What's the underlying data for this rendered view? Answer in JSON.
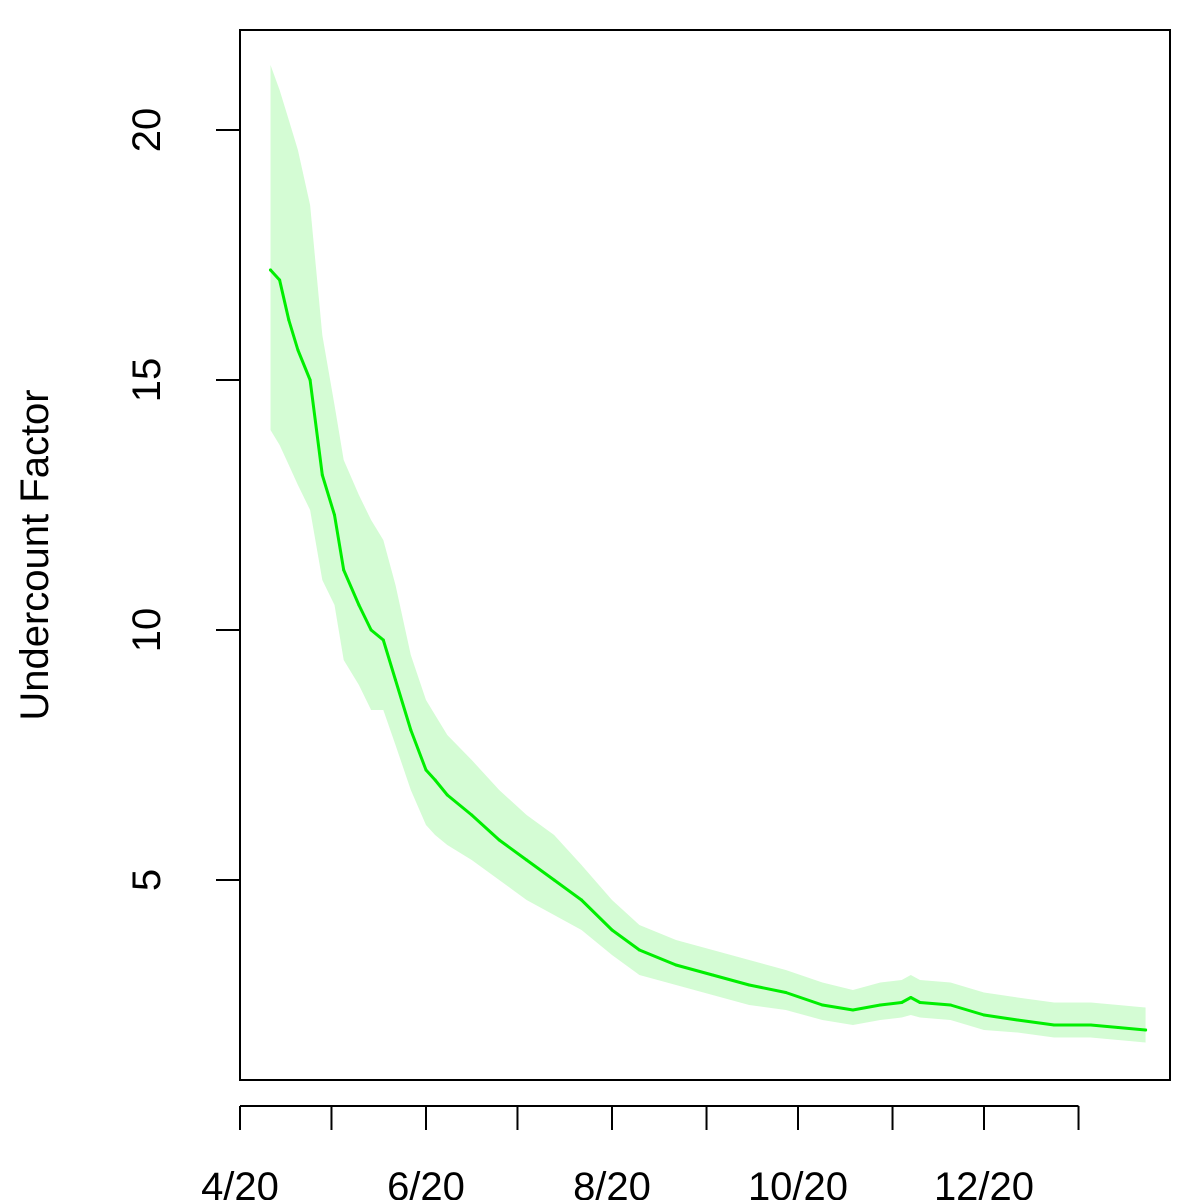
{
  "chart_data": {
    "type": "line",
    "title": "",
    "xlabel": "",
    "ylabel": "Undercount Factor",
    "x_axis": {
      "type": "date",
      "range": [
        "2020-04-01",
        "2021-01-31"
      ],
      "ticks": [
        "2020-04-01",
        "2020-05-01",
        "2020-06-01",
        "2020-07-01",
        "2020-08-01",
        "2020-09-01",
        "2020-10-01",
        "2020-11-01",
        "2020-12-01",
        "2021-01-01"
      ],
      "tick_labels": [
        {
          "date": "2020-04-01",
          "label": "4/20"
        },
        {
          "date": "2020-06-01",
          "label": "6/20"
        },
        {
          "date": "2020-08-01",
          "label": "8/20"
        },
        {
          "date": "2020-10-01",
          "label": "10/20"
        },
        {
          "date": "2020-12-01",
          "label": "12/20"
        }
      ]
    },
    "y_axis": {
      "range": [
        1.0,
        22.0
      ],
      "ticks": [
        5,
        10,
        15,
        20
      ],
      "tick_labels": [
        "5",
        "10",
        "15",
        "20"
      ]
    },
    "grid": false,
    "colors": {
      "line": "#00ee00",
      "band": "#d4fcd4",
      "axis": "#000000"
    },
    "series": [
      {
        "points": [
          {
            "date": "2020-04-11",
            "y": 17.2,
            "lower": 14.0,
            "upper": 21.3
          },
          {
            "date": "2020-04-14",
            "y": 17.0,
            "lower": 13.7,
            "upper": 20.8
          },
          {
            "date": "2020-04-17",
            "y": 16.2,
            "lower": 13.3,
            "upper": 20.2
          },
          {
            "date": "2020-04-20",
            "y": 15.6,
            "lower": 12.9,
            "upper": 19.6
          },
          {
            "date": "2020-04-24",
            "y": 15.0,
            "lower": 12.4,
            "upper": 18.5
          },
          {
            "date": "2020-04-28",
            "y": 13.1,
            "lower": 11.0,
            "upper": 15.9
          },
          {
            "date": "2020-05-02",
            "y": 12.3,
            "lower": 10.5,
            "upper": 14.5
          },
          {
            "date": "2020-05-05",
            "y": 11.2,
            "lower": 9.4,
            "upper": 13.4
          },
          {
            "date": "2020-05-10",
            "y": 10.5,
            "lower": 8.9,
            "upper": 12.7
          },
          {
            "date": "2020-05-14",
            "y": 10.0,
            "lower": 8.4,
            "upper": 12.2
          },
          {
            "date": "2020-05-18",
            "y": 9.8,
            "lower": 8.4,
            "upper": 11.8
          },
          {
            "date": "2020-05-22",
            "y": 9.0,
            "lower": 7.7,
            "upper": 10.9
          },
          {
            "date": "2020-05-27",
            "y": 8.0,
            "lower": 6.8,
            "upper": 9.5
          },
          {
            "date": "2020-06-01",
            "y": 7.2,
            "lower": 6.1,
            "upper": 8.6
          },
          {
            "date": "2020-06-04",
            "y": 7.0,
            "lower": 5.9,
            "upper": 8.3
          },
          {
            "date": "2020-06-08",
            "y": 6.7,
            "lower": 5.7,
            "upper": 7.9
          },
          {
            "date": "2020-06-16",
            "y": 6.3,
            "lower": 5.4,
            "upper": 7.4
          },
          {
            "date": "2020-06-25",
            "y": 5.8,
            "lower": 5.0,
            "upper": 6.8
          },
          {
            "date": "2020-07-04",
            "y": 5.4,
            "lower": 4.6,
            "upper": 6.3
          },
          {
            "date": "2020-07-13",
            "y": 5.0,
            "lower": 4.3,
            "upper": 5.9
          },
          {
            "date": "2020-07-22",
            "y": 4.6,
            "lower": 4.0,
            "upper": 5.3
          },
          {
            "date": "2020-08-01",
            "y": 4.0,
            "lower": 3.5,
            "upper": 4.6
          },
          {
            "date": "2020-08-10",
            "y": 3.6,
            "lower": 3.1,
            "upper": 4.1
          },
          {
            "date": "2020-08-22",
            "y": 3.3,
            "lower": 2.9,
            "upper": 3.8
          },
          {
            "date": "2020-09-03",
            "y": 3.1,
            "lower": 2.7,
            "upper": 3.6
          },
          {
            "date": "2020-09-15",
            "y": 2.9,
            "lower": 2.5,
            "upper": 3.4
          },
          {
            "date": "2020-09-27",
            "y": 2.75,
            "lower": 2.4,
            "upper": 3.2
          },
          {
            "date": "2020-10-09",
            "y": 2.5,
            "lower": 2.2,
            "upper": 2.95
          },
          {
            "date": "2020-10-19",
            "y": 2.4,
            "lower": 2.1,
            "upper": 2.8
          },
          {
            "date": "2020-10-28",
            "y": 2.5,
            "lower": 2.2,
            "upper": 2.95
          },
          {
            "date": "2020-11-04",
            "y": 2.55,
            "lower": 2.25,
            "upper": 3.0
          },
          {
            "date": "2020-11-07",
            "y": 2.65,
            "lower": 2.3,
            "upper": 3.1
          },
          {
            "date": "2020-11-10",
            "y": 2.55,
            "lower": 2.25,
            "upper": 3.0
          },
          {
            "date": "2020-11-20",
            "y": 2.5,
            "lower": 2.2,
            "upper": 2.95
          },
          {
            "date": "2020-12-01",
            "y": 2.3,
            "lower": 2.0,
            "upper": 2.75
          },
          {
            "date": "2020-12-12",
            "y": 2.2,
            "lower": 1.95,
            "upper": 2.65
          },
          {
            "date": "2020-12-24",
            "y": 2.1,
            "lower": 1.85,
            "upper": 2.55
          },
          {
            "date": "2021-01-05",
            "y": 2.1,
            "lower": 1.85,
            "upper": 2.55
          },
          {
            "date": "2021-01-14",
            "y": 2.05,
            "lower": 1.8,
            "upper": 2.5
          },
          {
            "date": "2021-01-23",
            "y": 2.0,
            "lower": 1.75,
            "upper": 2.45
          }
        ]
      }
    ]
  }
}
